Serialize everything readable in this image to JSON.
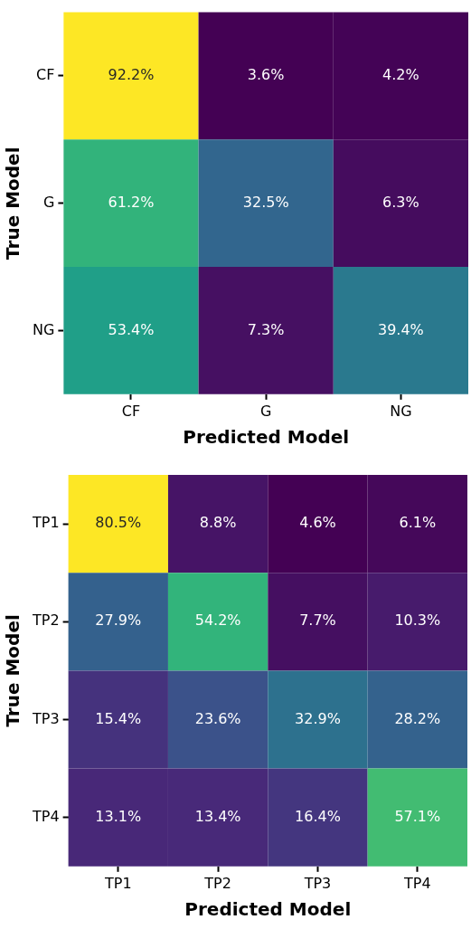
{
  "chart_data": [
    {
      "type": "heatmap",
      "xlabel": "Predicted Model",
      "ylabel": "True Model",
      "categories": [
        "CF",
        "G",
        "NG"
      ],
      "y_categories": [
        "CF",
        "G",
        "NG"
      ],
      "cells": [
        [
          92.2,
          3.6,
          4.2
        ],
        [
          61.2,
          32.5,
          6.3
        ],
        [
          53.4,
          7.3,
          39.4
        ]
      ],
      "cell_labels": [
        [
          "92.2%",
          "3.6%",
          "4.2%"
        ],
        [
          "61.2%",
          "32.5%",
          "6.3%"
        ],
        [
          "53.4%",
          "7.3%",
          "39.4%"
        ]
      ]
    },
    {
      "type": "heatmap",
      "xlabel": "Predicted Model",
      "ylabel": "True Model",
      "categories": [
        "TP1",
        "TP2",
        "TP3",
        "TP4"
      ],
      "y_categories": [
        "TP1",
        "TP2",
        "TP3",
        "TP4"
      ],
      "cells": [
        [
          80.5,
          8.8,
          4.6,
          6.1
        ],
        [
          27.9,
          54.2,
          7.7,
          10.3
        ],
        [
          15.4,
          23.6,
          32.9,
          28.2
        ],
        [
          13.1,
          13.4,
          16.4,
          57.1
        ]
      ],
      "cell_labels": [
        [
          "80.5%",
          "8.8%",
          "4.6%",
          "6.1%"
        ],
        [
          "27.9%",
          "54.2%",
          "7.7%",
          "10.3%"
        ],
        [
          "15.4%",
          "23.6%",
          "32.9%",
          "28.2%"
        ],
        [
          "13.1%",
          "13.4%",
          "16.4%",
          "57.1%"
        ]
      ]
    }
  ]
}
